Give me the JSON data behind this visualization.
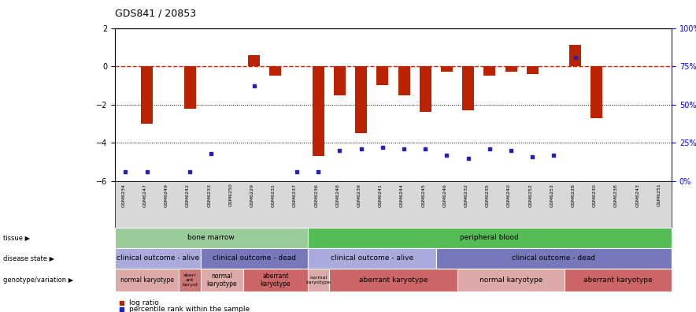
{
  "title": "GDS841 / 20853",
  "samples": [
    "GSM6234",
    "GSM6247",
    "GSM6249",
    "GSM6242",
    "GSM6233",
    "GSM6250",
    "GSM6229",
    "GSM6231",
    "GSM6237",
    "GSM6236",
    "GSM6248",
    "GSM6239",
    "GSM6241",
    "GSM6244",
    "GSM6245",
    "GSM6246",
    "GSM6232",
    "GSM6235",
    "GSM6240",
    "GSM6252",
    "GSM6253",
    "GSM6228",
    "GSM6230",
    "GSM6238",
    "GSM6243",
    "GSM6251"
  ],
  "log_ratio": [
    0,
    -3.0,
    0,
    -2.2,
    0,
    0,
    0.6,
    -0.5,
    0,
    -4.7,
    -1.5,
    -3.5,
    -1.0,
    -1.5,
    -2.4,
    -0.3,
    -2.3,
    -0.5,
    -0.3,
    -0.4,
    0,
    1.1,
    -2.7,
    0,
    0,
    0
  ],
  "percentile_y": [
    6,
    6,
    null,
    6,
    18,
    null,
    62,
    null,
    6,
    6,
    20,
    21,
    22,
    21,
    21,
    17,
    15,
    21,
    20,
    16,
    17,
    81,
    null,
    null,
    null,
    null
  ],
  "ylim": [
    -6,
    2
  ],
  "yticks_left": [
    -6,
    -4,
    -2,
    0,
    2
  ],
  "yticks_right": [
    0,
    25,
    50,
    75,
    100
  ],
  "hline_y": 0,
  "dotted_lines": [
    -2,
    -4
  ],
  "bar_color": "#bb2200",
  "dot_color": "#2222bb",
  "hline_color": "#cc2200",
  "bg_color": "#ffffff",
  "grid_color": "#000000",
  "tissue_row": {
    "label": "tissue",
    "segments": [
      {
        "text": "bone marrow",
        "start": 0,
        "end": 9,
        "color": "#99cc99"
      },
      {
        "text": "peripheral blood",
        "start": 9,
        "end": 26,
        "color": "#55bb55"
      }
    ]
  },
  "disease_row": {
    "label": "disease state",
    "segments": [
      {
        "text": "clinical outcome - alive",
        "start": 0,
        "end": 4,
        "color": "#aaaadd"
      },
      {
        "text": "clinical outcome - dead",
        "start": 4,
        "end": 9,
        "color": "#7777bb"
      },
      {
        "text": "clinical outcome - alive",
        "start": 9,
        "end": 15,
        "color": "#aaaadd"
      },
      {
        "text": "clinical outcome - dead",
        "start": 15,
        "end": 26,
        "color": "#7777bb"
      }
    ]
  },
  "genotype_row": {
    "label": "genotype/variation",
    "segments": [
      {
        "text": "normal karyotype",
        "start": 0,
        "end": 3,
        "color": "#ddaaaa"
      },
      {
        "text": "aberr\nant\nkaryot",
        "start": 3,
        "end": 4,
        "color": "#cc7777"
      },
      {
        "text": "normal\nkaryotype",
        "start": 4,
        "end": 6,
        "color": "#ddaaaa"
      },
      {
        "text": "aberrant\nkaryotype",
        "start": 6,
        "end": 9,
        "color": "#cc6666"
      },
      {
        "text": "normal\nkaryotype",
        "start": 9,
        "end": 10,
        "color": "#ddaaaa"
      },
      {
        "text": "aberrant karyotype",
        "start": 10,
        "end": 16,
        "color": "#cc6666"
      },
      {
        "text": "normal karyotype",
        "start": 16,
        "end": 21,
        "color": "#ddaaaa"
      },
      {
        "text": "aberrant karyotype",
        "start": 21,
        "end": 26,
        "color": "#cc6666"
      }
    ]
  }
}
